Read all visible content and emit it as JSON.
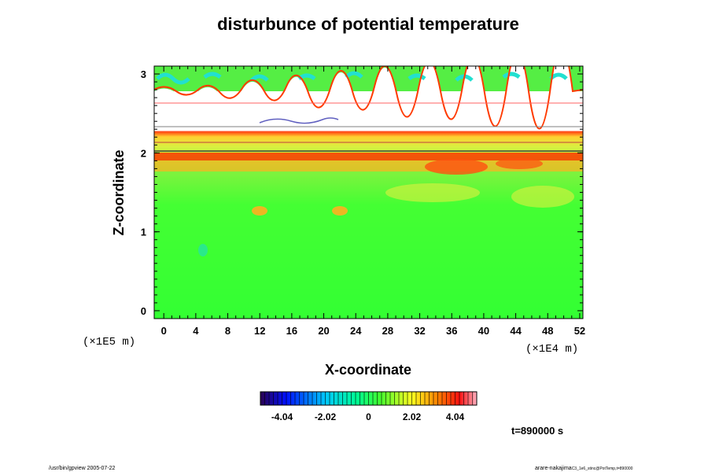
{
  "chart_data": {
    "type": "heatmap",
    "title": "disturbunce of potential temperature",
    "xlabel": "X-coordinate",
    "ylabel": "Z-coordinate",
    "x_unit": "(×1E4 m)",
    "y_unit": "(×1E5 m)",
    "xlim": [
      -1.2,
      52.4
    ],
    "ylim": [
      -0.1,
      3.1
    ],
    "x_ticks": [
      "0",
      "4",
      "8",
      "12",
      "16",
      "20",
      "24",
      "28",
      "32",
      "36",
      "40",
      "44",
      "48",
      "52"
    ],
    "y_ticks": [
      "0",
      "1",
      "2",
      "3"
    ],
    "colorbar": {
      "ticks": [
        "-4.04",
        "-2.02",
        "0",
        "2.02",
        "4.04"
      ],
      "range": [
        -5.05,
        5.05
      ]
    },
    "annotation": "t=890000 s",
    "footer_left": "/usr/bin/gpview 2005-07-22",
    "footer_right_main": "arare-nakajima",
    "footer_right_sub": "C3_1e6_stinc@PotTemp,t=890000",
    "colors": {
      "background_field": "#33ff33",
      "band_yellow": "#f0e040",
      "band_red": "#ff3a00",
      "top_cyan": "#22e0d0"
    }
  }
}
